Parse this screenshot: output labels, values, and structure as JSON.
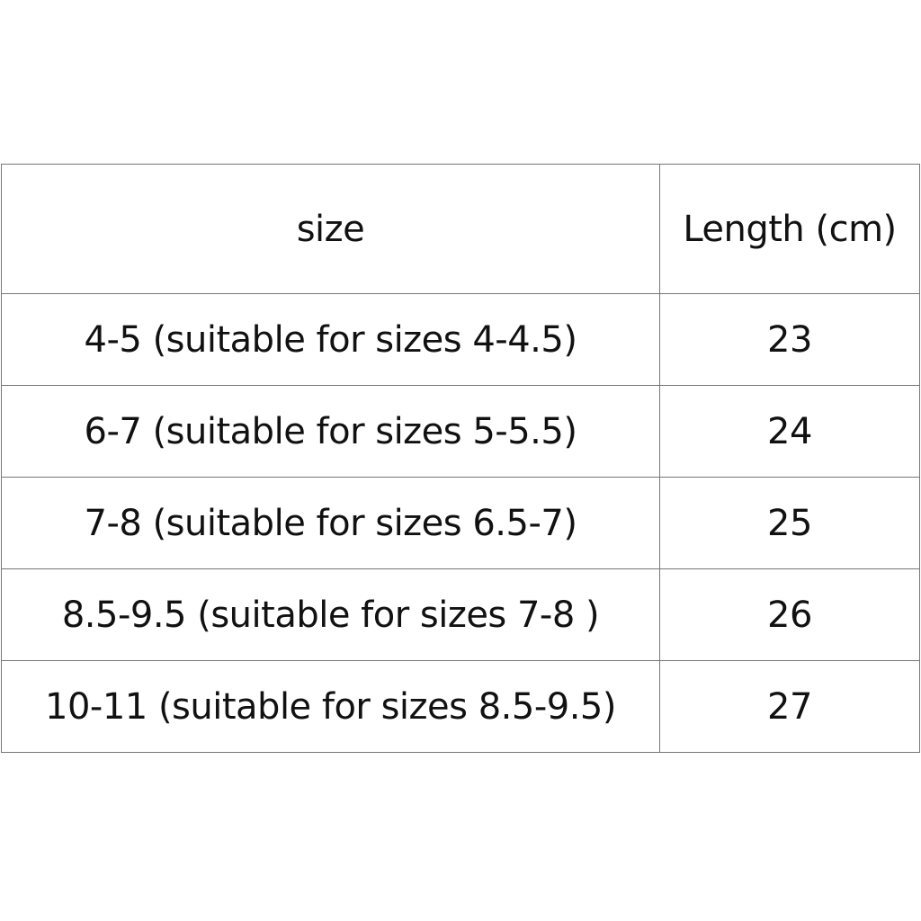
{
  "table": {
    "headers": [
      "size",
      "Length (cm)"
    ],
    "rows": [
      [
        "4-5 (suitable for sizes 4-4.5)",
        "23"
      ],
      [
        "6-7 (suitable for sizes 5-5.5)",
        "24"
      ],
      [
        "7-8 (suitable for sizes 6.5-7)",
        "25"
      ],
      [
        "8.5-9.5 (suitable for sizes 7-8 )",
        "26"
      ],
      [
        "10-11 (suitable for sizes 8.5-9.5)",
        "27"
      ]
    ]
  }
}
